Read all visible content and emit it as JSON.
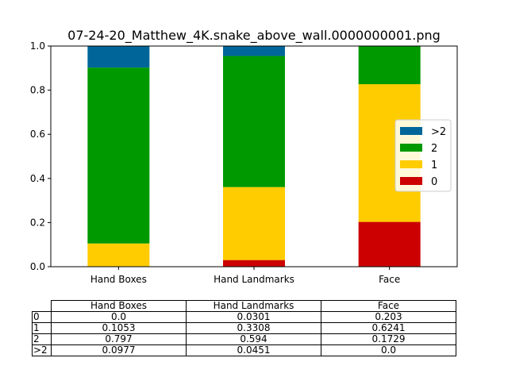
{
  "chart_data": {
    "type": "bar",
    "stacked": true,
    "title": "07-24-20_Matthew_4K.snake_above_wall.0000000001.png",
    "categories": [
      "Hand Boxes",
      "Hand Landmarks",
      "Face"
    ],
    "series": [
      {
        "name": "0",
        "color": "#cc0000",
        "values": [
          0.0,
          0.0301,
          0.203
        ]
      },
      {
        "name": "1",
        "color": "#ffcc00",
        "values": [
          0.1053,
          0.3308,
          0.6241
        ]
      },
      {
        "name": "2",
        "color": "#009900",
        "values": [
          0.797,
          0.594,
          0.1729
        ]
      },
      {
        "name": ">2",
        "color": "#006699",
        "values": [
          0.0977,
          0.0451,
          0.0
        ]
      }
    ],
    "ylim": [
      0,
      1.0
    ],
    "yticks": [
      "0.0",
      "0.2",
      "0.4",
      "0.6",
      "0.8",
      "1.0"
    ],
    "legend_position": "right",
    "grid": false,
    "table": {
      "columns": [
        "Hand Boxes",
        "Hand Landmarks",
        "Face"
      ],
      "rows": [
        {
          "label": "0",
          "cells": [
            "0.0",
            "0.0301",
            "0.203"
          ]
        },
        {
          "label": "1",
          "cells": [
            "0.1053",
            "0.3308",
            "0.6241"
          ]
        },
        {
          "label": "2",
          "cells": [
            "0.797",
            "0.594",
            "0.1729"
          ]
        },
        {
          "label": ">2",
          "cells": [
            "0.0977",
            "0.0451",
            "0.0"
          ]
        }
      ]
    }
  }
}
